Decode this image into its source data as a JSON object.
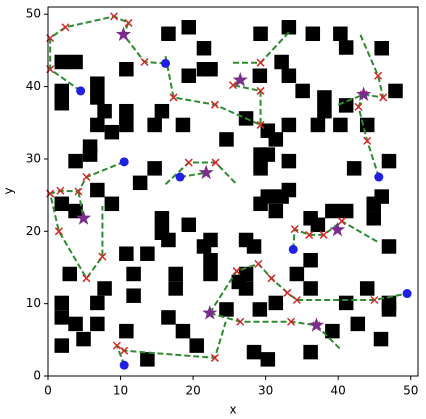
{
  "chart_data": {
    "type": "scatter",
    "xlabel": "x",
    "ylabel": "y",
    "xlim": [
      0,
      51
    ],
    "ylim": [
      0,
      51
    ],
    "xticks": [
      0,
      10,
      20,
      30,
      40,
      50
    ],
    "yticks": [
      0,
      10,
      20,
      30,
      40,
      50
    ],
    "obstacles": {
      "color": "#000000",
      "x": [
        16.6,
        19.4,
        29.3,
        33.2,
        36.5,
        40.3,
        41.1,
        46,
        21.5,
        1.9,
        3.8,
        10.8,
        19.4,
        21.5,
        22.4,
        29.2,
        32.2,
        33.2,
        1.9,
        1.9,
        6.8,
        6.8,
        7.8,
        10.8,
        10.8,
        6.8,
        8.8,
        15.7,
        14.7,
        18.6,
        24.6,
        27.3,
        30.3,
        30.3,
        31.4,
        33.2,
        35.1,
        38.1,
        38.1,
        40.3,
        37.2,
        41.1,
        44,
        47.9,
        42.2,
        47,
        46,
        3.8,
        5.8,
        5.8,
        12.7,
        14.7,
        6.8,
        8.8,
        1.9,
        3.8,
        15.7,
        15.7,
        16.6,
        19.4,
        21.5,
        22.4,
        22.4,
        22.4,
        10.8,
        13.7,
        27.3,
        28.4,
        29.3,
        29.3,
        33.2,
        30.3,
        32.2,
        33.2,
        29.3,
        31.4,
        36.2,
        37.2,
        39.2,
        41.1,
        44.9,
        44.9,
        36.2,
        34.3,
        36.2,
        47,
        44,
        47,
        47,
        41.1,
        39.2,
        42.7,
        45.9,
        36.2,
        27.3,
        27.3,
        26.3,
        29.2,
        31.4,
        24.6,
        30.3,
        28.4,
        20.5,
        16.6,
        18.6,
        17.6,
        17.6,
        11.8,
        11.8,
        7.8,
        6.8,
        6.8,
        3,
        1.9,
        1.9,
        3.8,
        4.9,
        1.9,
        10.8,
        13.7
      ],
      "y": [
        47.3,
        48.2,
        47.3,
        48.2,
        47.3,
        47.3,
        45.4,
        45.3,
        45.3,
        43.4,
        43.4,
        42.4,
        41.5,
        42.4,
        42.4,
        41.5,
        43.4,
        41.5,
        39.4,
        37.7,
        40.4,
        38.5,
        36.6,
        36.6,
        34.7,
        34.7,
        33.7,
        36.6,
        34.7,
        34.7,
        32.7,
        35.6,
        33.9,
        30.6,
        32.7,
        34.7,
        39.4,
        38.5,
        36.6,
        34.7,
        34.7,
        37.4,
        34.7,
        39.4,
        28.7,
        29.7,
        24.8,
        29.7,
        31.7,
        30.6,
        26.7,
        28.7,
        25.7,
        23.8,
        23.8,
        22.8,
        21.8,
        19.8,
        18.8,
        20.9,
        17.9,
        18.8,
        16,
        14.1,
        16.9,
        16.9,
        18.8,
        17.9,
        30.6,
        28.7,
        29.7,
        24.8,
        24.8,
        25.7,
        23.8,
        22.8,
        21.8,
        20.9,
        22.8,
        22.8,
        23.8,
        21.8,
        16,
        14.1,
        12.1,
        17.9,
        12.1,
        10.1,
        9.2,
        10.1,
        6.2,
        7.2,
        5.1,
        3.3,
        14.1,
        12.1,
        13,
        9.2,
        10.1,
        9.2,
        2.3,
        3.3,
        4.2,
        8.1,
        6.2,
        14.1,
        12.1,
        14.1,
        11.1,
        12.1,
        10.1,
        7.2,
        14.1,
        10.1,
        8.1,
        7.2,
        5.1,
        4.2,
        6.2,
        2.3
      ]
    },
    "paths": {
      "color": "#2e8b2e",
      "marker_color": "#d62728",
      "lines": [
        {
          "x": [
            4.5,
            0.3,
            0.3,
            2.4,
            9.1,
            11.1,
            10.4
          ],
          "y": [
            39.4,
            42.4,
            46.7,
            48.2,
            49.7,
            48.8,
            47.2
          ]
        },
        {
          "x": [
            16.2,
            13.3,
            10.4
          ],
          "y": [
            43.2,
            43.4,
            47.2
          ]
        },
        {
          "x": [
            16.2,
            17.3,
            23,
            29.3,
            29.3,
            25.5,
            26.5
          ],
          "y": [
            44.2,
            38.5,
            37.5,
            34.7,
            39.4,
            40.2,
            40.9
          ]
        },
        {
          "x": [
            25.5,
            29.3,
            33.2
          ],
          "y": [
            43.3,
            43.3,
            47.5
          ]
        },
        {
          "x": [
            45.6,
            44,
            42.8,
            43.5
          ],
          "y": [
            27.5,
            32.5,
            37.2,
            38.9
          ]
        },
        {
          "x": [
            40,
            43.5,
            46.2,
            45.5,
            43
          ],
          "y": [
            37.5,
            38.9,
            38.5,
            41.5,
            47.3
          ]
        },
        {
          "x": [
            16.2,
            19.4,
            23.1,
            26.1
          ],
          "y": [
            26.5,
            29.5,
            29.5,
            26.4
          ]
        },
        {
          "x": [
            18.2,
            21.8
          ],
          "y": [
            27.5,
            28.1
          ]
        },
        {
          "x": [
            10.5,
            5.3,
            4.2,
            1.7,
            0.3,
            1.5,
            5.3,
            7.5,
            7.5
          ],
          "y": [
            29.6,
            27.5,
            25.5,
            25.6,
            25.2,
            20,
            13.5,
            16.5,
            23.5
          ]
        },
        {
          "x": [
            4.2,
            4.9
          ],
          "y": [
            25.5,
            21.8
          ]
        },
        {
          "x": [
            33.8,
            34,
            36,
            38,
            40.5,
            45.5
          ],
          "y": [
            17.5,
            20.3,
            19.5,
            19.5,
            21.4,
            18.5
          ]
        },
        {
          "x": [
            22.3,
            26,
            29,
            30.8,
            33,
            34.3,
            45,
            49.5
          ],
          "y": [
            8.7,
            14.5,
            15.5,
            13.5,
            11.5,
            10.5,
            10.5,
            11.4
          ]
        },
        {
          "x": [
            22.3,
            26.5,
            33.5,
            37,
            40.5
          ],
          "y": [
            8.7,
            7.5,
            7.5,
            7,
            3.5
          ]
        },
        {
          "x": [
            10.5,
            9.5,
            10.5,
            23,
            24.5
          ],
          "y": [
            1.5,
            4.2,
            3.5,
            2.5,
            7.5
          ]
        }
      ]
    },
    "starts": {
      "color": "#1f1fe6",
      "x": [
        4.5,
        16.2,
        10.5,
        18.2,
        33.8,
        45.6,
        49.5,
        10.5
      ],
      "y": [
        39.4,
        43.2,
        29.6,
        27.5,
        17.5,
        27.5,
        11.4,
        1.5
      ]
    },
    "goals": {
      "color": "#7b2d8b",
      "x": [
        10.4,
        26.5,
        43.5,
        21.8,
        4.9,
        39.9,
        22.3,
        37
      ],
      "y": [
        47.2,
        40.9,
        38.9,
        28.1,
        21.8,
        20.2,
        8.7,
        7
      ]
    }
  }
}
